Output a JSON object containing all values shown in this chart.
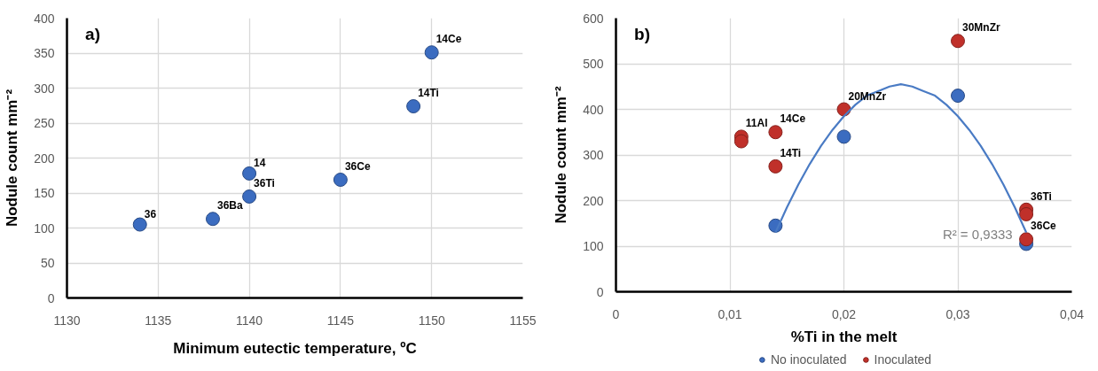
{
  "chart_data": [
    {
      "type": "scatter",
      "title": "a)",
      "xlabel": "Minimum eutectic temperature, ºC",
      "ylabel": "Nodule count mm⁻²",
      "x": [
        1134,
        1138,
        1140,
        1140,
        1145,
        1149,
        1150
      ],
      "series": [
        {
          "color": "#3b6cc0",
          "values": [
            105,
            113,
            178,
            145,
            169,
            274,
            351
          ]
        }
      ],
      "xlim": [
        1130,
        1155
      ],
      "ylim": [
        0,
        400
      ],
      "xticks": [
        1130,
        1135,
        1140,
        1145,
        1150,
        1155
      ],
      "yticks": [
        0,
        50,
        100,
        150,
        200,
        250,
        300,
        350,
        400
      ],
      "grid": true,
      "marker": "circle",
      "annotations": [
        {
          "text": "36",
          "x": 1134,
          "y": 105
        },
        {
          "text": "36Ba",
          "x": 1138,
          "y": 113
        },
        {
          "text": "14",
          "x": 1140,
          "y": 178
        },
        {
          "text": "36Ti",
          "x": 1140,
          "y": 145
        },
        {
          "text": "36Ce",
          "x": 1145,
          "y": 169
        },
        {
          "text": "14Ti",
          "x": 1149,
          "y": 274
        },
        {
          "text": "14Ce",
          "x": 1150,
          "y": 351
        }
      ]
    },
    {
      "type": "scatter",
      "title": "b)",
      "xlabel": "%Ti in the melt",
      "ylabel": "Nodule count mm⁻²",
      "series": [
        {
          "name": "No inoculated",
          "color": "#3b6cc0",
          "x": [
            0.014,
            0.02,
            0.03,
            0.036
          ],
          "values": [
            145,
            340,
            430,
            105
          ]
        },
        {
          "name": "Inoculated",
          "color": "#c0302a",
          "x": [
            0.011,
            0.011,
            0.014,
            0.014,
            0.02,
            0.03,
            0.036,
            0.036,
            0.036
          ],
          "values": [
            340,
            330,
            350,
            275,
            400,
            550,
            180,
            170,
            115
          ]
        },
        {
          "type": "line",
          "color": "#4a7bc4",
          "marker": "none",
          "x": [
            0.014,
            0.015,
            0.016,
            0.017,
            0.018,
            0.019,
            0.02,
            0.021,
            0.022,
            0.023,
            0.024,
            0.025,
            0.026,
            0.027,
            0.028,
            0.029,
            0.03,
            0.031,
            0.032,
            0.033,
            0.034,
            0.035,
            0.036
          ],
          "values": [
            130,
            185,
            235,
            280,
            320,
            355,
            385,
            410,
            430,
            440,
            450,
            455,
            450,
            440,
            430,
            410,
            385,
            355,
            320,
            280,
            235,
            185,
            130
          ]
        }
      ],
      "xlim": [
        0,
        0.04
      ],
      "ylim": [
        0,
        600
      ],
      "xticks": [
        0,
        {
          "value": 0.01,
          "label": "0,01"
        },
        {
          "value": 0.02,
          "label": "0,02"
        },
        {
          "value": 0.03,
          "label": "0,03"
        },
        {
          "value": 0.04,
          "label": "0,04"
        }
      ],
      "yticks": [
        0,
        100,
        200,
        300,
        400,
        500,
        600
      ],
      "grid": true,
      "marker": "circle",
      "legend": "bottom",
      "annotations": [
        "R² = 0,9333",
        {
          "text": "11Al",
          "x": 0.011,
          "y": 340
        },
        {
          "text": "14Ce",
          "x": 0.014,
          "y": 350
        },
        {
          "text": "14Ti",
          "x": 0.014,
          "y": 275
        },
        {
          "text": "20MnZr",
          "x": 0.02,
          "y": 400
        },
        {
          "text": "30MnZr",
          "x": 0.03,
          "y": 550
        },
        {
          "text": "36Ti",
          "x": 0.036,
          "y": 180
        },
        {
          "text": "36Ce",
          "x": 0.036,
          "y": 115
        }
      ]
    }
  ]
}
